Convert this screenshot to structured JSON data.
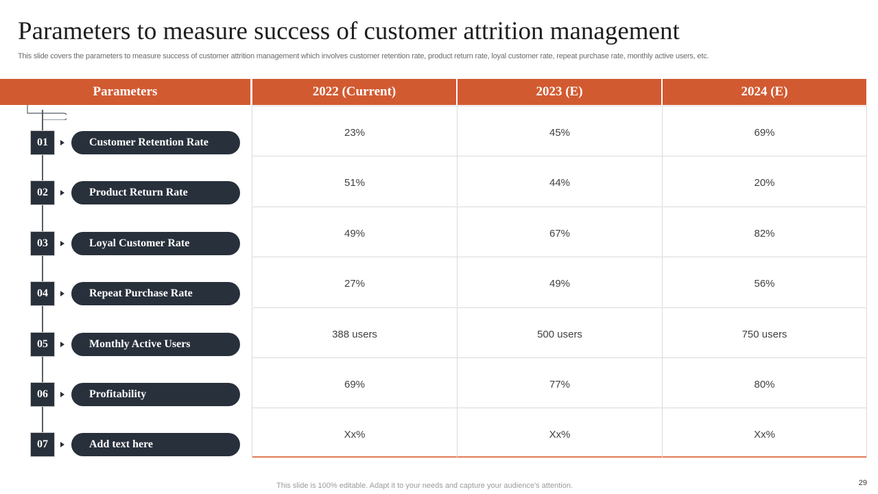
{
  "header": {
    "title": "Parameters to measure success of customer attrition management",
    "subtitle": "This slide covers the parameters to measure success of customer attrition management which involves customer retention rate, product return rate, loyal customer rate, repeat purchase rate, monthly active users, etc."
  },
  "colors": {
    "accent": "#d25a31",
    "dark": "#28303b",
    "grid": "#dadada"
  },
  "table": {
    "headers": [
      "Parameters",
      "2022 (Current)",
      "2023 (E)",
      "2024 (E)"
    ],
    "rows": [
      {
        "num": "01",
        "label": "Customer Retention Rate",
        "values": [
          "23%",
          "45%",
          "69%"
        ]
      },
      {
        "num": "02",
        "label": "Product Return Rate",
        "values": [
          "51%",
          "44%",
          "20%"
        ]
      },
      {
        "num": "03",
        "label": "Loyal Customer Rate",
        "values": [
          "49%",
          "67%",
          "82%"
        ]
      },
      {
        "num": "04",
        "label": "Repeat Purchase Rate",
        "values": [
          "27%",
          "49%",
          "56%"
        ]
      },
      {
        "num": "05",
        "label": "Monthly Active Users",
        "values": [
          "388 users",
          "500 users",
          "750 users"
        ]
      },
      {
        "num": "06",
        "label": "Profitability",
        "values": [
          "69%",
          "77%",
          "80%"
        ]
      },
      {
        "num": "07",
        "label": "Add text here",
        "values": [
          "Xx%",
          "Xx%",
          "Xx%"
        ]
      }
    ]
  },
  "footer": {
    "note": "This slide is 100% editable. Adapt it to your needs and capture your audience's attention.",
    "page_number": "29"
  }
}
